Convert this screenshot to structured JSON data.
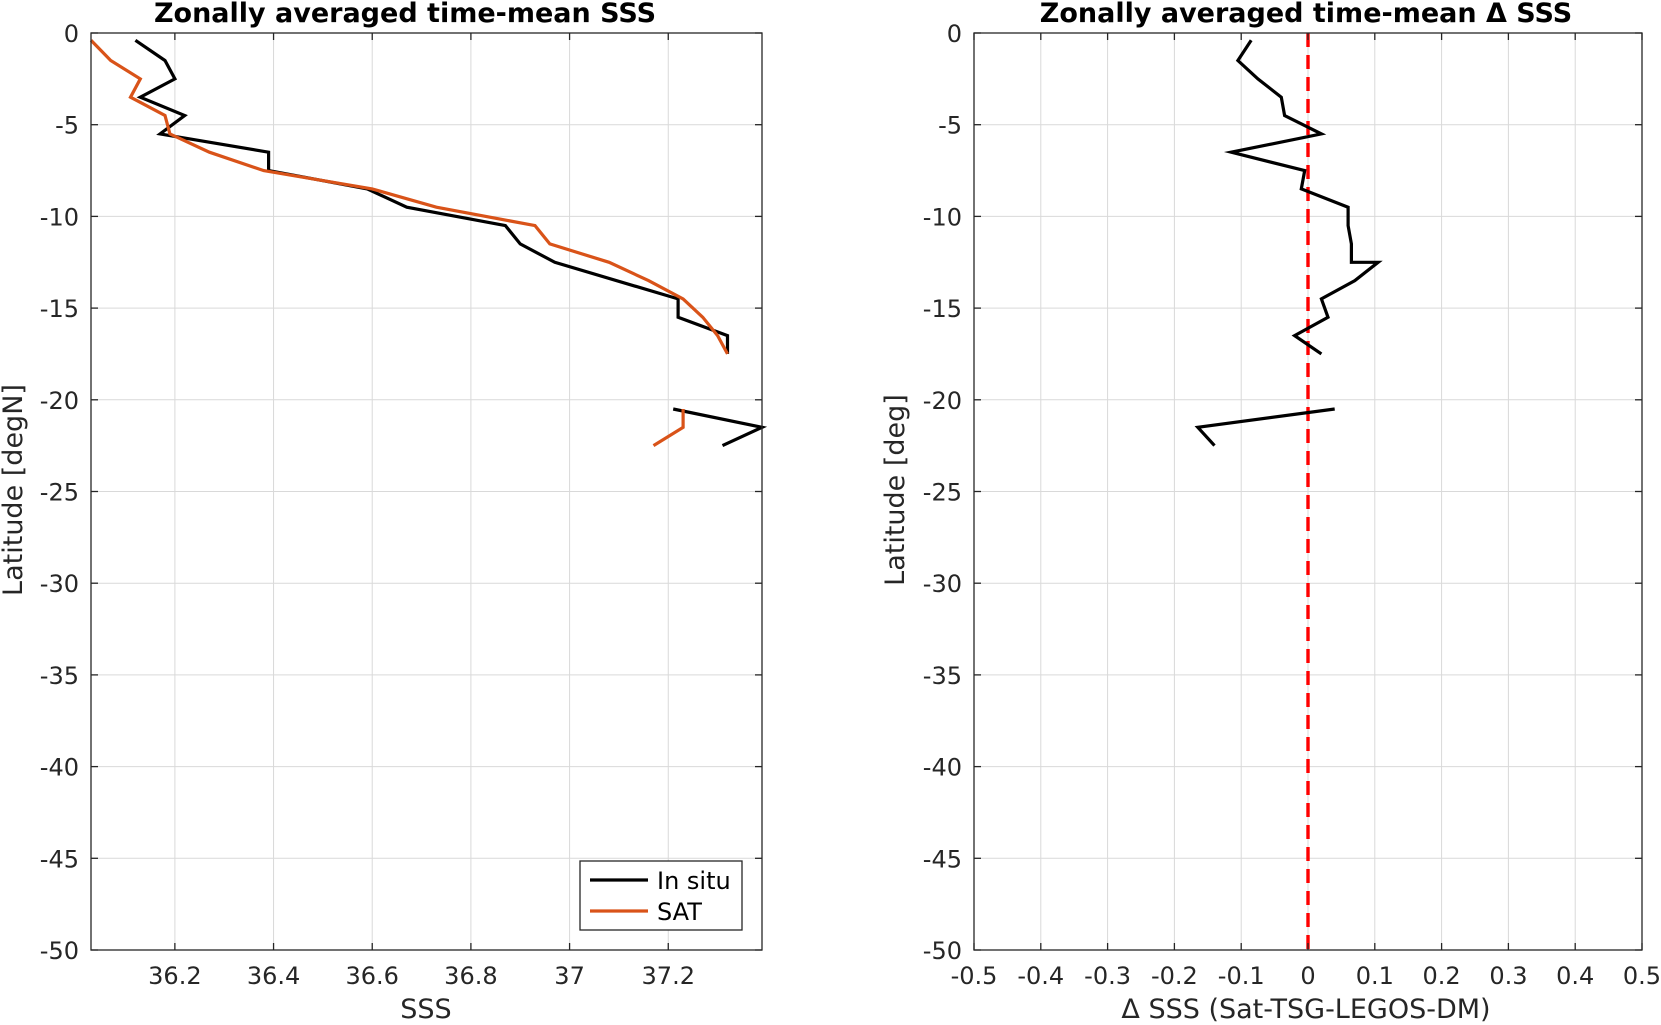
{
  "chart_data": [
    {
      "type": "line",
      "title": "Zonally averaged time-mean SSS",
      "xlabel": "SSS",
      "ylabel": "Latitude [degN]",
      "xlim": [
        36.03,
        37.39
      ],
      "ylim": [
        -50,
        0
      ],
      "xticks": [
        36.2,
        36.4,
        36.6,
        36.8,
        37,
        37.2
      ],
      "xtick_labels": [
        "36.2",
        "36.4",
        "36.6",
        "36.8",
        "37",
        "37.2"
      ],
      "yticks": [
        0,
        -5,
        -10,
        -15,
        -20,
        -25,
        -30,
        -35,
        -40,
        -45,
        -50
      ],
      "ytick_labels": [
        "0",
        "-5",
        "-10",
        "-15",
        "-20",
        "-25",
        "-30",
        "-35",
        "-40",
        "-45",
        "-50"
      ],
      "grid": true,
      "legend": "bottom-right",
      "series": [
        {
          "name": "In situ",
          "color": "#000000",
          "segments": [
            [
              [
                36.12,
                -0.4
              ],
              [
                36.18,
                -1.5
              ],
              [
                36.2,
                -2.5
              ],
              [
                36.13,
                -3.5
              ],
              [
                36.22,
                -4.5
              ],
              [
                36.17,
                -5.5
              ],
              [
                36.39,
                -6.5
              ],
              [
                36.39,
                -7.5
              ],
              [
                36.59,
                -8.5
              ],
              [
                36.67,
                -9.5
              ],
              [
                36.87,
                -10.5
              ],
              [
                36.9,
                -11.5
              ],
              [
                36.97,
                -12.5
              ],
              [
                37.22,
                -14.5
              ],
              [
                37.22,
                -15.5
              ],
              [
                37.32,
                -16.5
              ],
              [
                37.32,
                -17.5
              ]
            ],
            [
              [
                37.21,
                -20.5
              ],
              [
                37.39,
                -21.5
              ],
              [
                37.31,
                -22.5
              ]
            ]
          ]
        },
        {
          "name": "SAT",
          "color": "#d95319",
          "segments": [
            [
              [
                36.03,
                -0.4
              ],
              [
                36.07,
                -1.5
              ],
              [
                36.13,
                -2.5
              ],
              [
                36.11,
                -3.5
              ],
              [
                36.18,
                -4.5
              ],
              [
                36.19,
                -5.5
              ],
              [
                36.27,
                -6.5
              ],
              [
                36.38,
                -7.5
              ],
              [
                36.6,
                -8.5
              ],
              [
                36.73,
                -9.5
              ],
              [
                36.93,
                -10.5
              ],
              [
                36.96,
                -11.5
              ],
              [
                37.08,
                -12.5
              ],
              [
                37.16,
                -13.5
              ],
              [
                37.23,
                -14.5
              ],
              [
                37.27,
                -15.5
              ],
              [
                37.3,
                -16.5
              ],
              [
                37.32,
                -17.5
              ]
            ],
            [
              [
                37.23,
                -20.5
              ],
              [
                37.23,
                -21.5
              ],
              [
                37.17,
                -22.5
              ]
            ]
          ]
        }
      ]
    },
    {
      "type": "line",
      "title": "Zonally averaged time-mean Δ SSS",
      "xlabel": "Δ SSS (Sat-TSG-LEGOS-DM)",
      "ylabel": "Latitude [deg]",
      "xlim": [
        -0.5,
        0.5
      ],
      "ylim": [
        -50,
        0
      ],
      "xticks": [
        -0.5,
        -0.4,
        -0.3,
        -0.2,
        -0.1,
        0,
        0.1,
        0.2,
        0.3,
        0.4,
        0.5
      ],
      "xtick_labels": [
        "-0.5",
        "-0.4",
        "-0.3",
        "-0.2",
        "-0.1",
        "0",
        "0.1",
        "0.2",
        "0.3",
        "0.4",
        "0.5"
      ],
      "yticks": [
        0,
        -5,
        -10,
        -15,
        -20,
        -25,
        -30,
        -35,
        -40,
        -45,
        -50
      ],
      "ytick_labels": [
        "0",
        "-5",
        "-10",
        "-15",
        "-20",
        "-25",
        "-30",
        "-35",
        "-40",
        "-45",
        "-50"
      ],
      "grid": true,
      "reference_line": {
        "x": 0,
        "color": "#ff0000",
        "style": "dashed"
      },
      "series": [
        {
          "color": "#000000",
          "segments": [
            [
              [
                -0.085,
                -0.4
              ],
              [
                -0.105,
                -1.5
              ],
              [
                -0.075,
                -2.5
              ],
              [
                -0.04,
                -3.5
              ],
              [
                -0.035,
                -4.5
              ],
              [
                0.02,
                -5.5
              ],
              [
                -0.115,
                -6.5
              ],
              [
                -0.005,
                -7.5
              ],
              [
                -0.01,
                -8.5
              ],
              [
                0.06,
                -9.5
              ],
              [
                0.06,
                -10.5
              ],
              [
                0.065,
                -11.5
              ],
              [
                0.065,
                -12.5
              ],
              [
                0.105,
                -12.5
              ],
              [
                0.07,
                -13.5
              ],
              [
                0.02,
                -14.5
              ],
              [
                0.03,
                -15.5
              ],
              [
                -0.02,
                -16.5
              ],
              [
                0.02,
                -17.5
              ]
            ],
            [
              [
                0.04,
                -20.5
              ],
              [
                -0.165,
                -21.5
              ],
              [
                -0.14,
                -22.5
              ]
            ]
          ]
        }
      ]
    }
  ]
}
